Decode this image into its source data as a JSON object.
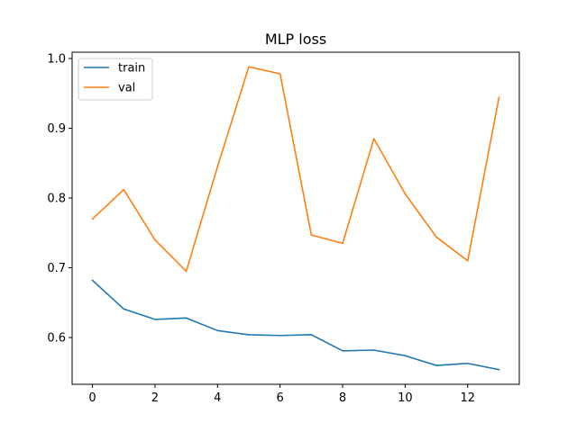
{
  "chart_data": {
    "type": "line",
    "title": "MLP loss",
    "xlabel": "",
    "ylabel": "",
    "xlim": [
      -0.65,
      13.65
    ],
    "ylim": [
      0.533,
      1.009
    ],
    "xticks": [
      0,
      2,
      4,
      6,
      8,
      10,
      12
    ],
    "yticks": [
      0.6,
      0.7,
      0.8,
      0.9,
      1.0
    ],
    "ytick_labels": [
      "0.6",
      "0.7",
      "0.8",
      "0.9",
      "1.0"
    ],
    "grid": false,
    "legend": "top-left",
    "x": [
      0,
      1,
      2,
      3,
      4,
      5,
      6,
      7,
      8,
      9,
      10,
      11,
      12,
      13
    ],
    "series": [
      {
        "name": "train",
        "color": "#1f77b4",
        "values": [
          0.682,
          0.641,
          0.626,
          0.628,
          0.61,
          0.604,
          0.603,
          0.604,
          0.581,
          0.582,
          0.574,
          0.56,
          0.563,
          0.554
        ]
      },
      {
        "name": "val",
        "color": "#ff7f0e",
        "values": [
          0.77,
          0.812,
          0.74,
          0.695,
          0.845,
          0.988,
          0.978,
          0.747,
          0.735,
          0.885,
          0.806,
          0.744,
          0.71,
          0.944
        ]
      }
    ]
  }
}
